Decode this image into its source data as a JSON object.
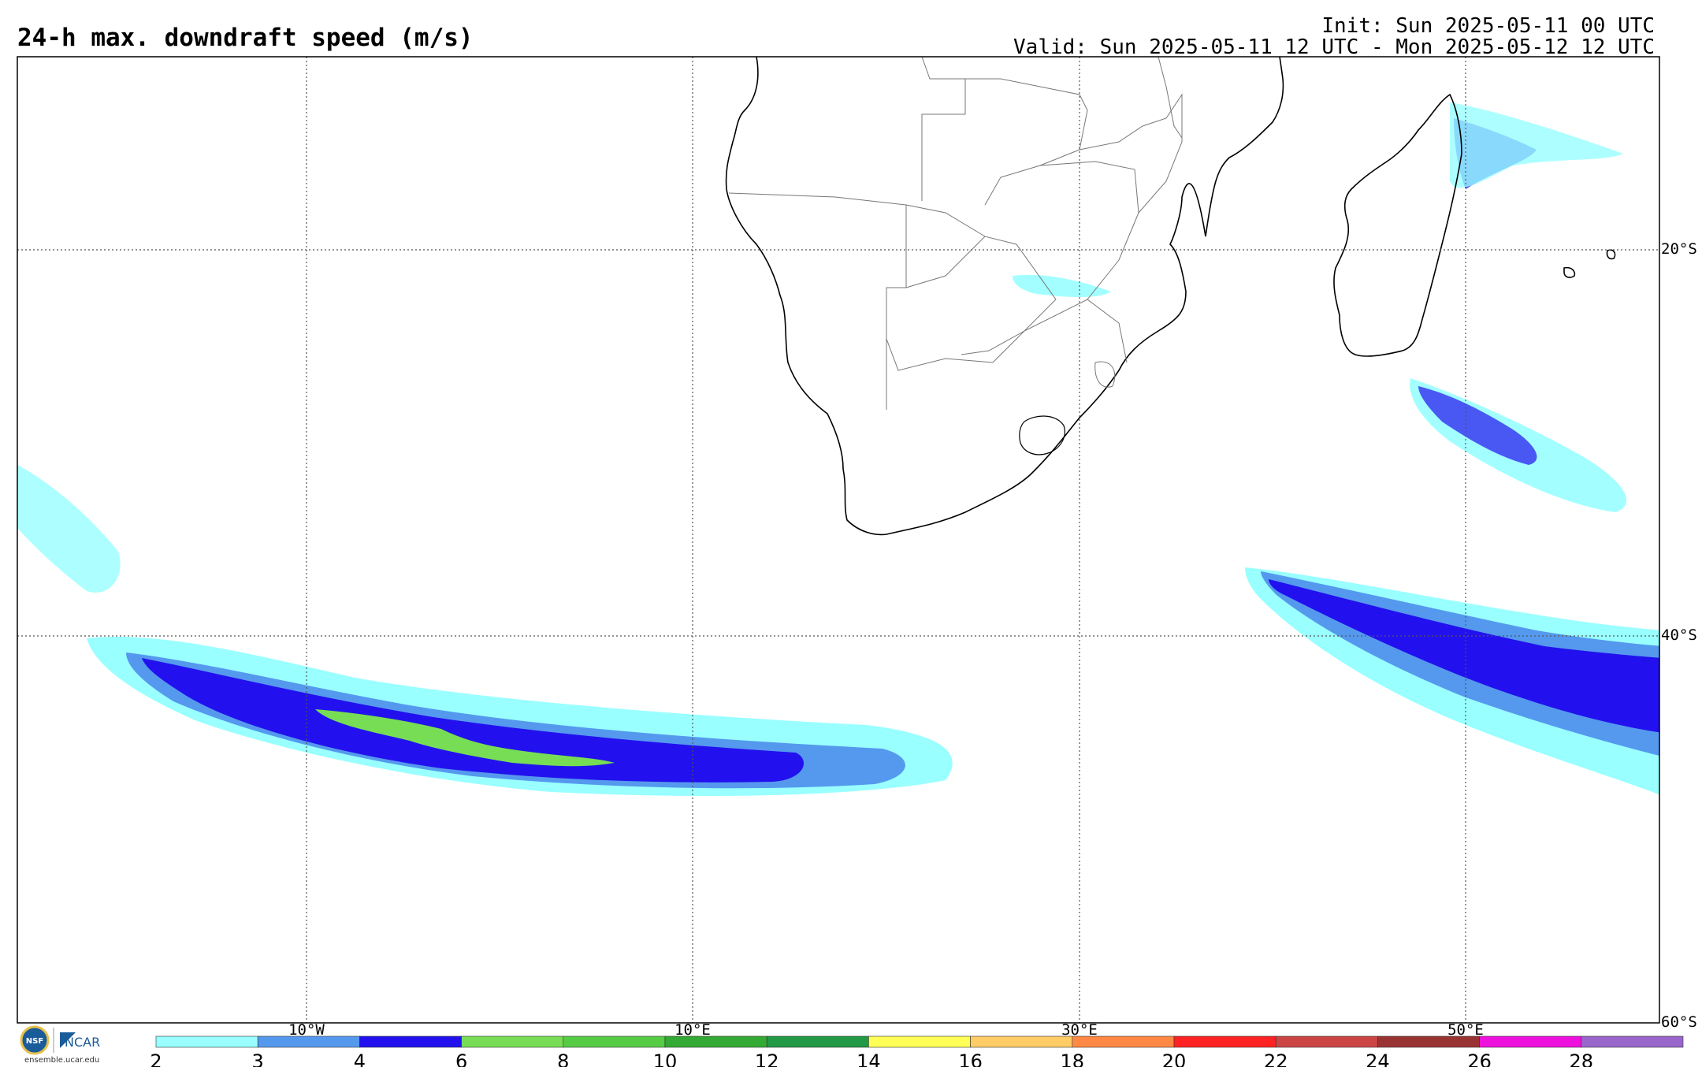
{
  "header": {
    "title": "24-h max. downdraft speed (m/s)",
    "init": "Init: Sun 2025-05-11 00 UTC",
    "valid": "Valid: Sun 2025-05-11 12 UTC - Mon 2025-05-12 12 UTC"
  },
  "map": {
    "region": "Southern Africa and South Atlantic / South-west Indian Ocean",
    "lon_range": [
      -25,
      60
    ],
    "lat_range": [
      -60,
      -10
    ],
    "lon_gridlines": [
      {
        "value": -10,
        "label": "10°W"
      },
      {
        "value": 10,
        "label": "10°E"
      },
      {
        "value": 30,
        "label": "30°E"
      },
      {
        "value": 50,
        "label": "50°E"
      }
    ],
    "lat_gridlines": [
      {
        "value": -20,
        "label": "20°S"
      },
      {
        "value": -40,
        "label": "40°S"
      },
      {
        "value": -60,
        "label": "60°S"
      }
    ]
  },
  "colorbar": {
    "ticks": [
      "2",
      "3",
      "4",
      "6",
      "8",
      "10",
      "12",
      "14",
      "16",
      "18",
      "20",
      "22",
      "24",
      "26",
      "28"
    ],
    "colors": [
      "#99ffff",
      "#5599ee",
      "#2211ee",
      "#77dd55",
      "#55cc44",
      "#33aa33",
      "#229944",
      "#ffff55",
      "#ffcc66",
      "#ff8844",
      "#ff2222",
      "#cc4444",
      "#993333",
      "#ee11dd",
      "#9966cc"
    ]
  },
  "logos": {
    "nsf": "NSF",
    "ncar": "NCAR",
    "url": "ensemble.ucar.edu"
  }
}
